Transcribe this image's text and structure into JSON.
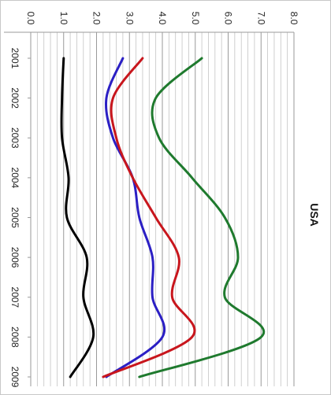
{
  "chart_data": {
    "type": "line",
    "title": "USA",
    "categories": [
      "2001",
      "2002",
      "2003",
      "2004",
      "2005",
      "2006",
      "2007",
      "2008",
      "2009"
    ],
    "y_ticks": [
      "0.0",
      "1.0",
      "2.0",
      "3.0",
      "4.0",
      "5.0",
      "6.0",
      "7.0",
      "8.0"
    ],
    "ylim": [
      0,
      8
    ],
    "grid": true,
    "orientation": "rotated-90-clockwise",
    "series": [
      {
        "color": "#000000",
        "values": [
          1.0,
          0.95,
          0.95,
          1.15,
          1.1,
          1.7,
          1.6,
          1.9,
          1.2
        ]
      },
      {
        "color": "#2b1fc4",
        "values": [
          2.8,
          2.3,
          2.5,
          3.1,
          3.3,
          3.7,
          3.7,
          4.0,
          2.3
        ]
      },
      {
        "color": "#c8161d",
        "values": [
          3.4,
          2.5,
          2.6,
          3.1,
          3.8,
          4.5,
          4.3,
          4.9,
          2.2
        ]
      },
      {
        "color": "#1f7a2e",
        "values": [
          5.2,
          3.8,
          3.9,
          4.9,
          5.9,
          6.3,
          5.9,
          7.0,
          3.3
        ]
      }
    ]
  }
}
